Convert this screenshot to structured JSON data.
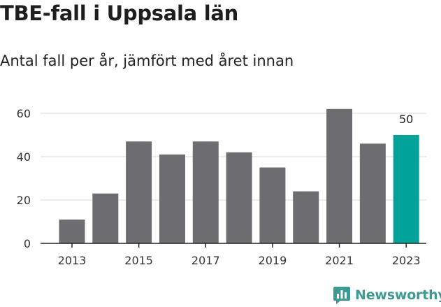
{
  "header": {
    "title": "TBE-fall i Uppsala län",
    "subtitle": "Antal fall per år, jämfört med året innan"
  },
  "brand": {
    "name": "Newsworthy",
    "icon": "chat-bubble-bar-chart-icon",
    "color": "#3e9a93"
  },
  "colors": {
    "bar": "#6d6d71",
    "highlight": "#00a29a",
    "grid": "#d9d9d9",
    "axis": "#222222"
  },
  "chart_data": {
    "type": "bar",
    "title": "TBE-fall i Uppsala län",
    "subtitle": "Antal fall per år, jämfört med året innan",
    "xlabel": "",
    "ylabel": "",
    "x": [
      2013,
      2014,
      2015,
      2016,
      2017,
      2018,
      2019,
      2020,
      2021,
      2022,
      2023
    ],
    "values": [
      11,
      23,
      47,
      41,
      47,
      42,
      35,
      24,
      62,
      46,
      50
    ],
    "x_tick_labels": [
      "2013",
      "2015",
      "2017",
      "2019",
      "2021",
      "2023"
    ],
    "y_ticks": [
      0,
      20,
      40,
      60
    ],
    "ylim": [
      0,
      64
    ],
    "grid": true,
    "legend": "none",
    "highlight": {
      "x": 2023,
      "value_label": "50"
    }
  }
}
